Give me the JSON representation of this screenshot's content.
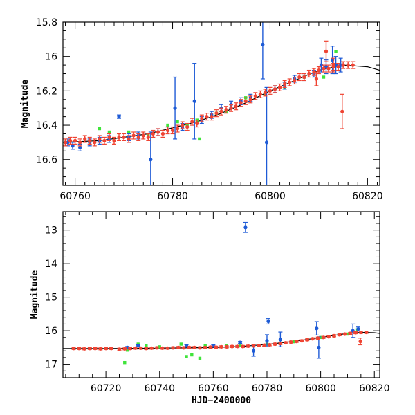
{
  "chart_data": [
    {
      "type": "scatter",
      "panel": "top",
      "title": "",
      "xlabel": "",
      "ylabel": "Magnitude",
      "xlim": [
        60757.5,
        60822.5
      ],
      "ylim": [
        16.75,
        15.8
      ],
      "y_inverted": true,
      "x_ticks": [
        "60760",
        "60780",
        "60800",
        "60820"
      ],
      "y_ticks": [
        "15.8",
        "16",
        "16.2",
        "16.4",
        "16.6"
      ],
      "grid": false,
      "legend": "none",
      "fit_curve": {
        "x": [
          60757.5,
          60765,
          60775,
          60785,
          60790,
          60795,
          60800,
          60805,
          60810,
          60815,
          60820,
          60822.5
        ],
        "y": [
          16.5,
          16.49,
          16.45,
          16.38,
          16.33,
          16.27,
          16.2,
          16.14,
          16.08,
          16.05,
          16.06,
          16.08
        ],
        "color": "#000000"
      },
      "series": [
        {
          "color": "#ef4433",
          "x": [
            60758,
            60759,
            60760,
            60761,
            60762,
            60763,
            60764,
            60765,
            60766,
            60767,
            60768,
            60769,
            60770,
            60771,
            60772,
            60773,
            60774,
            60775,
            60776,
            60777,
            60778,
            60779,
            60780,
            60781,
            60782,
            60783,
            60784,
            60785,
            60786,
            60787,
            60788,
            60789,
            60790,
            60791,
            60792,
            60793,
            60794,
            60795,
            60796,
            60797,
            60798,
            60799,
            60800,
            60801,
            60802,
            60803,
            60804,
            60805,
            60806,
            60807,
            60808,
            60809,
            60810,
            60811,
            60812,
            60813,
            60814,
            60815,
            60816,
            60817,
            60811.5,
            60813,
            60814.8,
            60809.5
          ],
          "y": [
            16.5,
            16.49,
            16.49,
            16.5,
            16.48,
            16.49,
            16.5,
            16.48,
            16.49,
            16.47,
            16.49,
            16.47,
            16.47,
            16.48,
            16.46,
            16.47,
            16.46,
            16.47,
            16.45,
            16.44,
            16.45,
            16.43,
            16.43,
            16.42,
            16.4,
            16.41,
            16.38,
            16.39,
            16.36,
            16.35,
            16.35,
            16.33,
            16.32,
            16.31,
            16.3,
            16.29,
            16.27,
            16.26,
            16.25,
            16.23,
            16.22,
            16.21,
            16.2,
            16.19,
            16.18,
            16.16,
            16.15,
            16.14,
            16.12,
            16.12,
            16.1,
            16.09,
            16.08,
            16.07,
            16.07,
            16.06,
            16.06,
            16.05,
            16.05,
            16.05,
            15.97,
            16.05,
            16.32,
            16.13
          ],
          "err": [
            0.02,
            0.02,
            0.02,
            0.02,
            0.02,
            0.02,
            0.02,
            0.02,
            0.02,
            0.02,
            0.02,
            0.02,
            0.02,
            0.02,
            0.02,
            0.02,
            0.02,
            0.02,
            0.02,
            0.02,
            0.02,
            0.02,
            0.02,
            0.02,
            0.02,
            0.02,
            0.02,
            0.02,
            0.02,
            0.02,
            0.02,
            0.02,
            0.02,
            0.02,
            0.02,
            0.02,
            0.02,
            0.02,
            0.02,
            0.02,
            0.02,
            0.02,
            0.02,
            0.02,
            0.02,
            0.02,
            0.02,
            0.02,
            0.02,
            0.02,
            0.02,
            0.02,
            0.02,
            0.02,
            0.02,
            0.02,
            0.02,
            0.02,
            0.02,
            0.02,
            0.06,
            0.04,
            0.1,
            0.04
          ]
        },
        {
          "color": "#1e5bd6",
          "x": [
            60758.5,
            60759.5,
            60761,
            60763,
            60765,
            60767,
            60769,
            60771,
            60773,
            60775.5,
            60777,
            60779,
            60780.5,
            60782,
            60784.5,
            60786,
            60788,
            60790,
            60792,
            60794,
            60796,
            60798.5,
            60799.3,
            60801,
            60803,
            60805,
            60807,
            60809,
            60810.5,
            60811.5,
            60812.8,
            60813.5,
            60814.5
          ],
          "y": [
            16.5,
            16.52,
            16.53,
            16.5,
            16.49,
            16.48,
            16.35,
            16.47,
            16.46,
            16.6,
            16.44,
            16.43,
            16.3,
            16.41,
            16.26,
            16.37,
            16.34,
            16.3,
            16.28,
            16.26,
            16.24,
            15.93,
            16.5,
            16.19,
            16.17,
            16.13,
            16.12,
            16.1,
            16.05,
            16.06,
            16.02,
            16.05,
            16.05
          ],
          "err": [
            0.02,
            0.02,
            0.02,
            0.02,
            0.02,
            0.02,
            0.01,
            0.02,
            0.02,
            0.16,
            0.02,
            0.02,
            0.18,
            0.02,
            0.22,
            0.02,
            0.02,
            0.02,
            0.02,
            0.02,
            0.02,
            0.2,
            0.32,
            0.02,
            0.02,
            0.02,
            0.02,
            0.02,
            0.04,
            0.04,
            0.08,
            0.05,
            0.04
          ]
        },
        {
          "color": "#3fe43a",
          "x": [
            60765,
            60767,
            60771,
            60775,
            60779,
            60781,
            60783,
            60785,
            60789,
            60791,
            60795,
            60799,
            60803,
            60807,
            60811,
            60813.5,
            60785.5
          ],
          "y": [
            16.42,
            16.44,
            16.44,
            16.46,
            16.4,
            16.38,
            16.4,
            16.37,
            16.33,
            16.32,
            16.24,
            16.22,
            16.18,
            16.12,
            16.12,
            15.97,
            16.48
          ]
        }
      ]
    },
    {
      "type": "scatter",
      "panel": "bottom",
      "title": "",
      "xlabel": "HJD−2400000",
      "ylabel": "Magnitude",
      "xlim": [
        60704,
        60822
      ],
      "ylim": [
        17.4,
        12.45
      ],
      "y_inverted": true,
      "x_ticks": [
        "60720",
        "60740",
        "60760",
        "60780",
        "60800",
        "60820"
      ],
      "y_ticks": [
        "13",
        "14",
        "15",
        "16",
        "17"
      ],
      "grid": false,
      "legend": "none",
      "fit_curve": {
        "x": [
          60704,
          60720,
          60740,
          60760,
          60770,
          60780,
          60790,
          60800,
          60810,
          60815,
          60820,
          60822
        ],
        "y": [
          16.53,
          16.53,
          16.52,
          16.5,
          16.47,
          16.41,
          16.32,
          16.2,
          16.08,
          16.05,
          16.06,
          16.08
        ],
        "color": "#000000"
      },
      "series": [
        {
          "color": "#ef4433",
          "x": [
            60708,
            60710,
            60712,
            60714,
            60716,
            60718,
            60720,
            60722,
            60725,
            60727,
            60729,
            60731,
            60733,
            60735,
            60737,
            60739,
            60741,
            60743,
            60745,
            60747,
            60749,
            60751,
            60753,
            60755,
            60757,
            60759,
            60761,
            60763,
            60765,
            60767,
            60769,
            60771,
            60773,
            60775,
            60777,
            60779,
            60781,
            60783,
            60785,
            60787,
            60789,
            60791,
            60793,
            60795,
            60797,
            60799,
            60801,
            60803,
            60805,
            60807,
            60809,
            60811,
            60813,
            60815,
            60817,
            60814.8
          ],
          "y": [
            16.53,
            16.53,
            16.54,
            16.53,
            16.53,
            16.54,
            16.53,
            16.53,
            16.55,
            16.54,
            16.53,
            16.52,
            16.52,
            16.53,
            16.52,
            16.51,
            16.52,
            16.52,
            16.51,
            16.5,
            16.51,
            16.5,
            16.5,
            16.51,
            16.5,
            16.49,
            16.49,
            16.48,
            16.48,
            16.47,
            16.47,
            16.47,
            16.46,
            16.45,
            16.44,
            16.43,
            16.42,
            16.4,
            16.38,
            16.36,
            16.34,
            16.32,
            16.3,
            16.27,
            16.24,
            16.22,
            16.2,
            16.18,
            16.15,
            16.12,
            16.1,
            16.08,
            16.06,
            16.05,
            16.05,
            16.32
          ],
          "err": [
            0.03,
            0.03,
            0.03,
            0.03,
            0.03,
            0.03,
            0.03,
            0.03,
            0.03,
            0.03,
            0.03,
            0.03,
            0.03,
            0.03,
            0.03,
            0.03,
            0.03,
            0.03,
            0.03,
            0.03,
            0.03,
            0.03,
            0.03,
            0.03,
            0.03,
            0.03,
            0.03,
            0.03,
            0.03,
            0.03,
            0.03,
            0.03,
            0.03,
            0.03,
            0.03,
            0.03,
            0.03,
            0.03,
            0.03,
            0.03,
            0.03,
            0.03,
            0.03,
            0.03,
            0.03,
            0.03,
            0.03,
            0.03,
            0.03,
            0.03,
            0.03,
            0.03,
            0.03,
            0.03,
            0.03,
            0.1
          ]
        },
        {
          "color": "#1e5bd6",
          "x": [
            60728,
            60732,
            60750,
            60760,
            60770,
            60772,
            60775,
            60777,
            60780,
            60780.5,
            60785,
            60798.5,
            60799.3,
            60812,
            60814
          ],
          "y": [
            16.5,
            16.45,
            16.45,
            16.45,
            16.35,
            12.92,
            16.6,
            16.44,
            16.3,
            15.72,
            16.26,
            15.93,
            16.5,
            16.0,
            15.95
          ],
          "err": [
            0.03,
            0.03,
            0.03,
            0.03,
            0.03,
            0.15,
            0.16,
            0.03,
            0.18,
            0.08,
            0.22,
            0.2,
            0.32,
            0.2,
            0.06
          ]
        },
        {
          "color": "#3fe43a",
          "x": [
            60727,
            60728,
            60732,
            60735,
            60740,
            60748,
            60750,
            60752,
            60755,
            60757,
            60765,
            60770,
            60780,
            60785,
            60790,
            60795,
            60800,
            60805,
            60810,
            60813.5
          ],
          "y": [
            16.95,
            16.58,
            16.4,
            16.45,
            16.48,
            16.4,
            16.77,
            16.72,
            16.82,
            16.45,
            16.45,
            16.44,
            16.4,
            16.37,
            16.33,
            16.26,
            16.2,
            16.15,
            16.1,
            15.97
          ]
        }
      ]
    }
  ]
}
